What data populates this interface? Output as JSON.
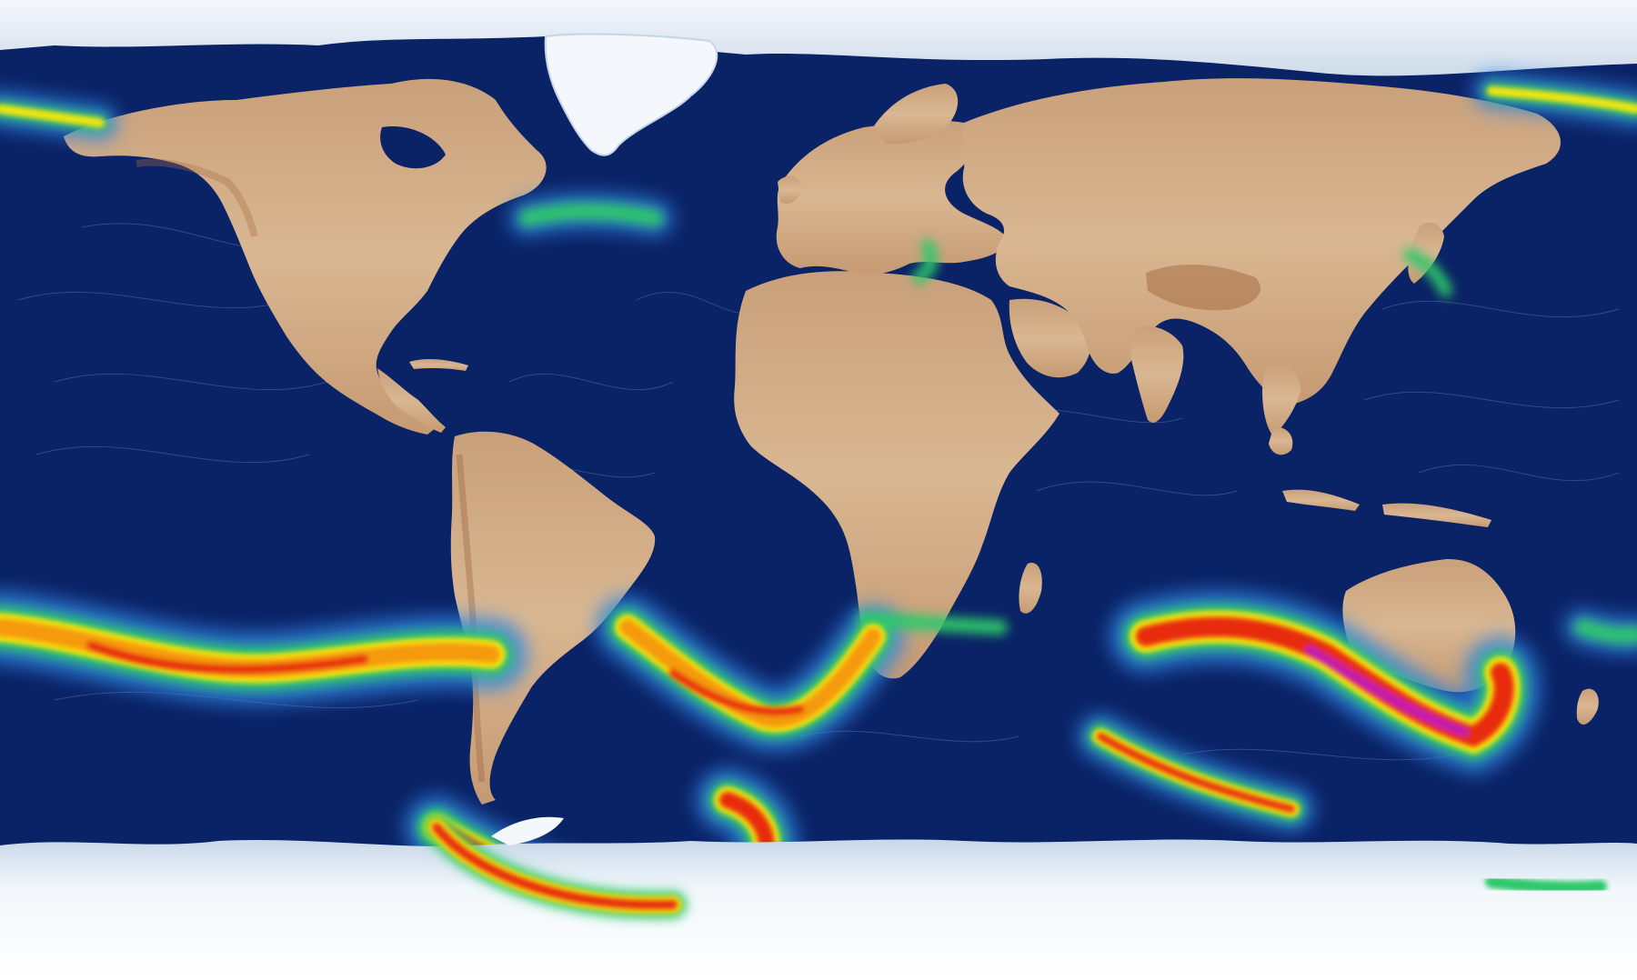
{
  "map": {
    "projection": "equirectangular",
    "colors": {
      "ocean": "#0a2266",
      "land_light": "#d8b58f",
      "land_dark": "#a9744a",
      "ice": "#f3f8fc",
      "ice_shadow": "#c7d6e8",
      "streamline": "#8fa0c8"
    },
    "wind_scale": [
      "#1a4fb8",
      "#2f86e0",
      "#36c0e8",
      "#2ec86a",
      "#9ae02a",
      "#f5e60a",
      "#f59a0a",
      "#e82a0a",
      "#a80e18",
      "#c21ab0"
    ],
    "features": [
      {
        "name": "north-america",
        "type": "continent"
      },
      {
        "name": "south-america",
        "type": "continent"
      },
      {
        "name": "greenland",
        "type": "ice-sheet"
      },
      {
        "name": "europe",
        "type": "continent"
      },
      {
        "name": "africa",
        "type": "continent"
      },
      {
        "name": "asia",
        "type": "continent"
      },
      {
        "name": "australia",
        "type": "continent"
      },
      {
        "name": "antarctica",
        "type": "ice-sheet"
      }
    ]
  }
}
